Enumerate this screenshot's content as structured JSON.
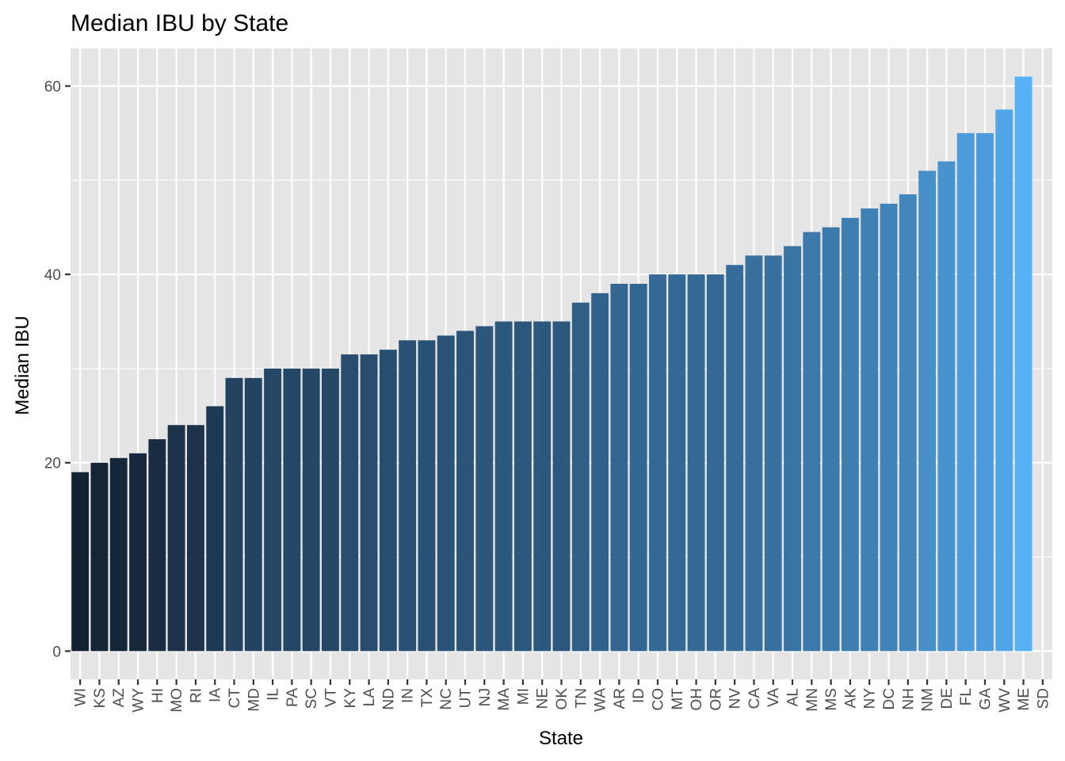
{
  "chart_data": {
    "type": "bar",
    "title": "Median IBU by State",
    "xlabel": "State",
    "ylabel": "Median IBU",
    "ylim": [
      -3,
      64
    ],
    "yticks": [
      0,
      20,
      40,
      60
    ],
    "grid": true,
    "legend": "none",
    "colors": {
      "panel": "#e5e5e5",
      "grid": "#ffffff",
      "bar_low": "#132132",
      "bar_high": "#56b1f7"
    },
    "categories": [
      "WI",
      "KS",
      "AZ",
      "WY",
      "HI",
      "MO",
      "RI",
      "IA",
      "CT",
      "MD",
      "IL",
      "PA",
      "SC",
      "VT",
      "KY",
      "LA",
      "ND",
      "IN",
      "TX",
      "NC",
      "UT",
      "NJ",
      "MA",
      "MI",
      "NE",
      "OK",
      "TN",
      "WA",
      "AR",
      "ID",
      "CO",
      "MT",
      "OH",
      "OR",
      "NV",
      "CA",
      "VA",
      "AL",
      "MN",
      "MS",
      "AK",
      "NY",
      "DC",
      "NH",
      "NM",
      "DE",
      "FL",
      "GA",
      "WV",
      "ME",
      "SD"
    ],
    "values": [
      19,
      20,
      20.5,
      21,
      22.5,
      24,
      24,
      26,
      29,
      29,
      30,
      30,
      30,
      30,
      31.5,
      31.5,
      32,
      33,
      33,
      33.5,
      34,
      34.5,
      35,
      35,
      35,
      35,
      37,
      38,
      39,
      39,
      40,
      40,
      40,
      40,
      41,
      42,
      42,
      43,
      44.5,
      45,
      46,
      47,
      47.5,
      48.5,
      51,
      52,
      55,
      55,
      57.5,
      61,
      null
    ]
  }
}
